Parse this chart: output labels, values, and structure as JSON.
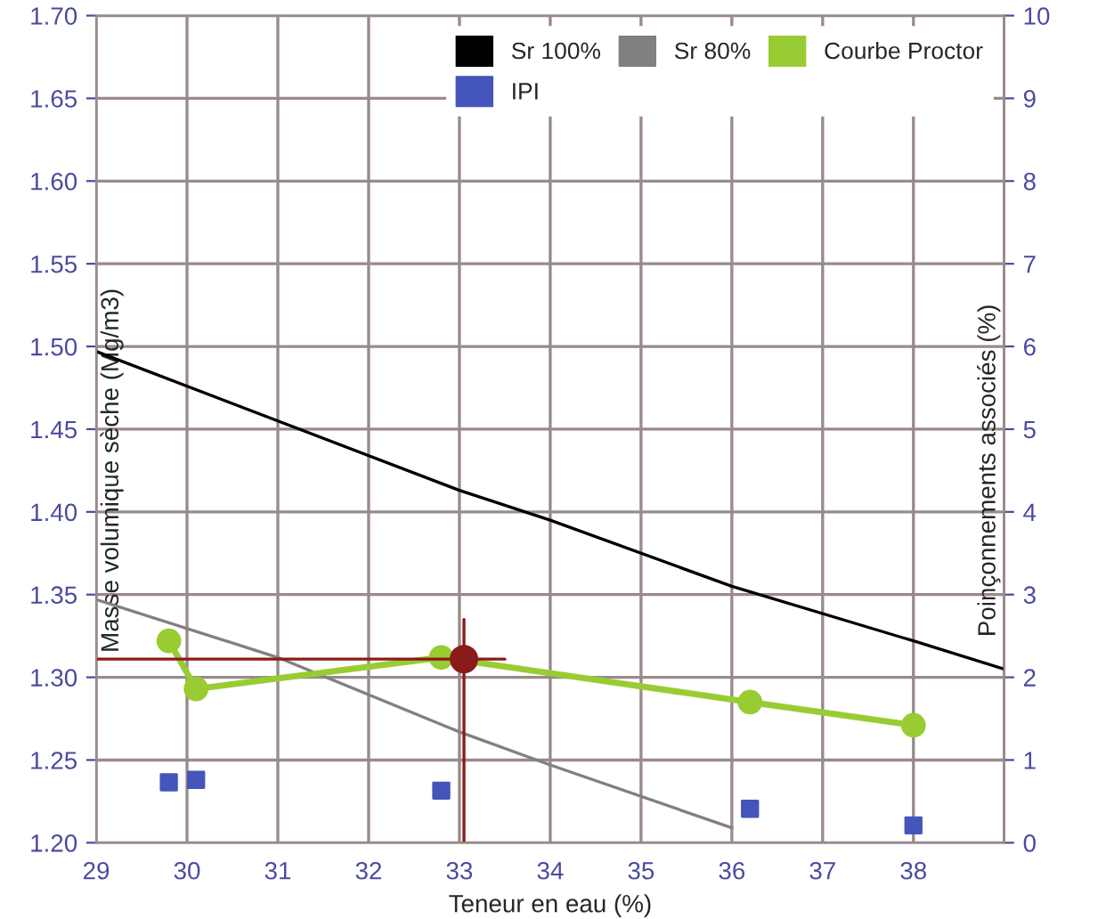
{
  "chart_data": {
    "type": "line",
    "xlabel": "Teneur en eau (%)",
    "ylabel": "Masse volumique sèche (Mg/m3)",
    "y2label": "Poinçonnements associés (%)",
    "xlim": [
      29,
      39
    ],
    "xticks": [
      29,
      30,
      31,
      32,
      33,
      34,
      35,
      36,
      37,
      38,
      {
        "value": 39,
        "label": null
      }
    ],
    "ylim": [
      1.2,
      1.7
    ],
    "yticks": [
      {
        "value": 1.2,
        "label": "1.20"
      },
      {
        "value": 1.25,
        "label": "1.25"
      },
      {
        "value": 1.3,
        "label": "1.30"
      },
      {
        "value": 1.35,
        "label": "1.35"
      },
      {
        "value": 1.4,
        "label": "1.40"
      },
      {
        "value": 1.45,
        "label": "1.45"
      },
      {
        "value": 1.5,
        "label": "1.50"
      },
      {
        "value": 1.55,
        "label": "1.55"
      },
      {
        "value": 1.6,
        "label": "1.60"
      },
      {
        "value": 1.65,
        "label": "1.65"
      },
      {
        "value": 1.7,
        "label": "1.70"
      }
    ],
    "y2lim": [
      0,
      10
    ],
    "y2ticks": [
      0,
      1,
      2,
      3,
      4,
      5,
      6,
      7,
      8,
      9,
      10
    ],
    "grid": true,
    "legend": "top right",
    "series": [
      {
        "name": "Sr 100%",
        "color": "#000000",
        "marker": "none",
        "x": [
          29,
          33,
          34,
          36,
          38,
          39
        ],
        "values": [
          1.497,
          1.413,
          1.395,
          1.355,
          1.322,
          1.305
        ]
      },
      {
        "name": "Sr 80%",
        "color": "#808080",
        "marker": "none",
        "x": [
          29,
          31,
          33,
          34,
          36
        ],
        "values": [
          1.347,
          1.312,
          1.267,
          1.247,
          1.209
        ]
      },
      {
        "name": "Courbe Proctor",
        "color": "#99cc33",
        "marker": "circle",
        "x": [
          29.8,
          30.1,
          32.8,
          36.2,
          38.0
        ],
        "values": [
          1.322,
          1.293,
          1.312,
          1.285,
          1.271
        ]
      },
      {
        "name": "IPI",
        "color": "#4455bb",
        "type": "scatter",
        "marker": "square",
        "axis": "y2",
        "x": [
          29.8,
          30.1,
          32.8,
          36.2,
          38.0
        ],
        "values": [
          0.73,
          0.76,
          0.63,
          0.41,
          0.21
        ]
      },
      {
        "color": "#8b1a1a",
        "marker": "none",
        "x": [
          29,
          33.5
        ],
        "values": [
          1.311,
          1.311
        ]
      },
      {
        "color": "#8b1a1a",
        "marker": "none",
        "x": [
          33.05,
          33.05
        ],
        "values": [
          1.2,
          1.335
        ]
      },
      {
        "color": "#8b1a1a",
        "type": "scatter",
        "marker": "circle",
        "x": [
          33.05
        ],
        "values": [
          1.311
        ]
      }
    ]
  }
}
